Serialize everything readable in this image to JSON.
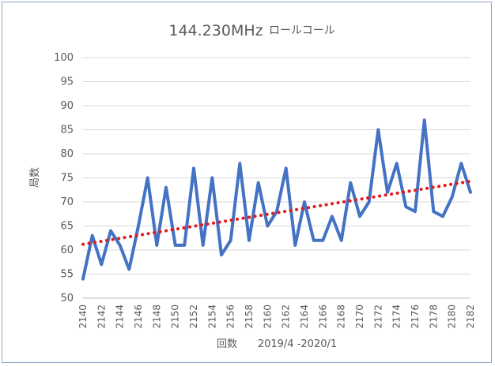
{
  "chart_data": {
    "type": "line",
    "title": "144.230MHz",
    "subtitle": "ロールコール",
    "xlabel": "回数",
    "xlabel_note": "2019/4 -2020/1",
    "ylabel": "局数",
    "ylim": [
      50,
      100
    ],
    "yticks": [
      50,
      55,
      60,
      65,
      70,
      75,
      80,
      85,
      90,
      95,
      100
    ],
    "xlim": [
      2140,
      2182
    ],
    "xticks": [
      "2140",
      "2142",
      "2144",
      "2146",
      "2148",
      "2150",
      "2152",
      "2154",
      "2156",
      "2158",
      "2160",
      "2162",
      "2164",
      "2166",
      "2168",
      "2170",
      "2172",
      "2174",
      "2176",
      "2178",
      "2180",
      "2182"
    ],
    "grid": true,
    "colors": {
      "series": "#4472c4",
      "trend": "#e31a1c",
      "grid": "#d9d9d9",
      "axis": "#bfbfbf"
    },
    "series": [
      {
        "name": "局数",
        "x": [
          2140,
          2141,
          2142,
          2143,
          2144,
          2145,
          2146,
          2147,
          2148,
          2149,
          2150,
          2151,
          2152,
          2153,
          2154,
          2155,
          2156,
          2157,
          2158,
          2159,
          2160,
          2161,
          2162,
          2163,
          2164,
          2165,
          2166,
          2167,
          2168,
          2169,
          2170,
          2171,
          2172,
          2173,
          2174,
          2175,
          2176,
          2177,
          2178,
          2179,
          2180,
          2181,
          2182
        ],
        "values": [
          54,
          63,
          57,
          64,
          61,
          56,
          65,
          75,
          61,
          73,
          61,
          61,
          77,
          61,
          75,
          59,
          62,
          78,
          62,
          74,
          65,
          68,
          77,
          61,
          70,
          62,
          62,
          67,
          62,
          74,
          67,
          70,
          85,
          72,
          78,
          69,
          68,
          87,
          68,
          67,
          71,
          78,
          72
        ]
      }
    ],
    "trendline": {
      "type": "linear",
      "from": [
        2140,
        61.2
      ],
      "to": [
        2182,
        74.3
      ]
    }
  }
}
